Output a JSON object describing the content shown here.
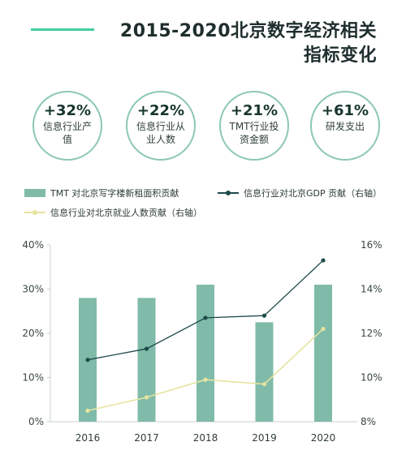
{
  "header": {
    "title_line1": "2015-2020北京数字经济相关",
    "title_line2": "指标变化"
  },
  "kpis": [
    {
      "value": "+32%",
      "label": "信息行业产值"
    },
    {
      "value": "+22%",
      "label": "信息行业从业人数"
    },
    {
      "value": "+21%",
      "label": "TMT行业投资金额"
    },
    {
      "value": "+61%",
      "label": "研发支出"
    }
  ],
  "colors": {
    "bar": "#7fbba8",
    "gdp_line": "#1f4a4a",
    "employment_line": "#e6e3a0",
    "accent": "#3fcf9e"
  },
  "chart_data": {
    "type": "bar",
    "categories": [
      "2016",
      "2017",
      "2018",
      "2019",
      "2020"
    ],
    "y_left": {
      "ylim": [
        0,
        40
      ],
      "ticks": [
        "0%",
        "10%",
        "20%",
        "30%",
        "40%"
      ]
    },
    "y_right": {
      "ylim": [
        8,
        16
      ],
      "ticks": [
        "8%",
        "10%",
        "12%",
        "14%",
        "16%"
      ]
    },
    "grid": false,
    "legend_position": "top",
    "series": [
      {
        "name": "TMT 对北京写字楼新租面积贡献",
        "kind": "bar",
        "axis": "left",
        "values": [
          28,
          28,
          31,
          22.5,
          31
        ]
      },
      {
        "name": "信息行业对北京GDP 贡献（右轴）",
        "kind": "line",
        "axis": "right",
        "values": [
          10.8,
          11.3,
          12.7,
          12.8,
          15.3
        ]
      },
      {
        "name": "信息行业对北京就业人数贡献（右轴）",
        "kind": "line",
        "axis": "right",
        "values": [
          8.5,
          9.1,
          9.9,
          9.7,
          12.2
        ]
      }
    ]
  }
}
